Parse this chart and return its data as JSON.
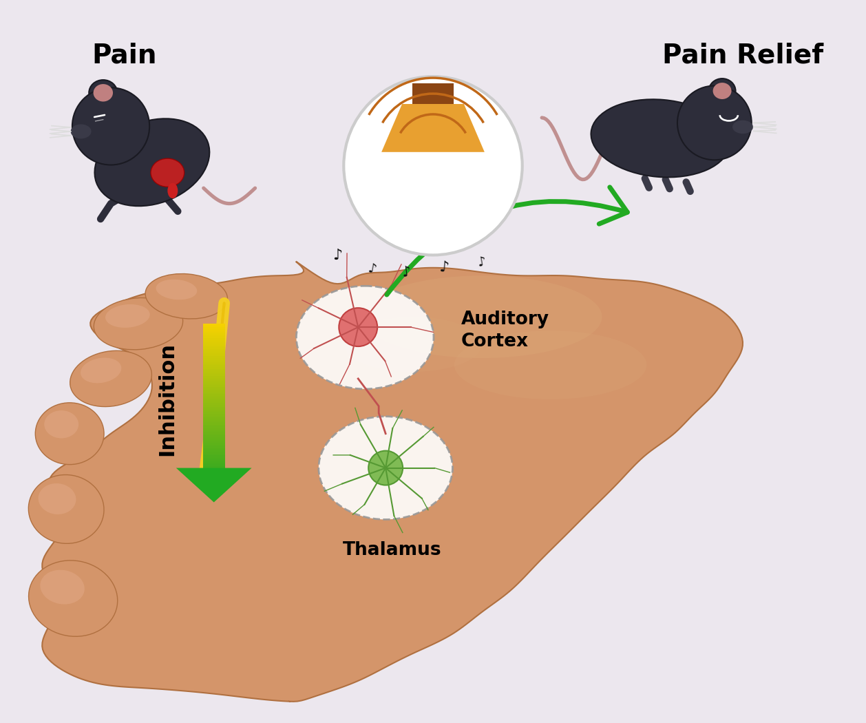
{
  "bg_color": "#ece7ee",
  "brain_color": "#d4956a",
  "brain_highlight": "#dba878",
  "brain_shadow": "#c07850",
  "title_pain": "Pain",
  "title_relief": "Pain Relief",
  "label_auditory": "Auditory\nCortex",
  "label_thalamus": "Thalamus",
  "label_inhibition": "Inhibition",
  "title_fontsize": 28,
  "label_fontsize": 19,
  "inhibition_fontsize": 22,
  "mouse_dark": "#2d2d3a",
  "mouse_pink": "#d4a0a0",
  "mouse_ear_pink": "#c89090"
}
